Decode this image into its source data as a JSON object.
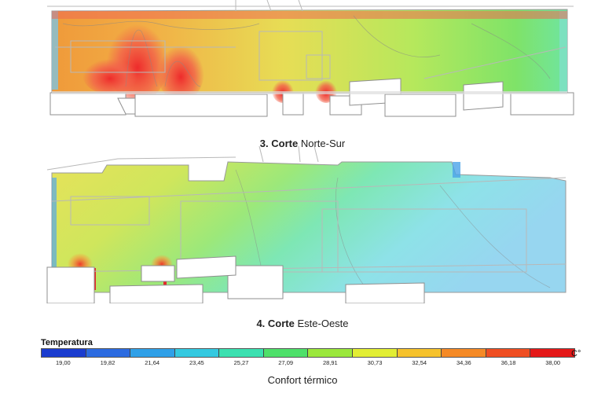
{
  "sections": [
    {
      "number": "3.",
      "label_bold": "Corte",
      "label_rest": "Norte-Sur"
    },
    {
      "number": "4.",
      "label_bold": "Corte",
      "label_rest": "Este-Oeste"
    }
  ],
  "legend": {
    "title": "Temperatura",
    "unit": "C°",
    "values": [
      "19,00",
      "19,82",
      "21,64",
      "23,45",
      "25,27",
      "27,09",
      "28,91",
      "30,73",
      "32,54",
      "34,36",
      "36,18",
      "38,00"
    ],
    "colors": [
      "#1a3ccf",
      "#2c6be0",
      "#2fa0e8",
      "#34c9e0",
      "#3be0b0",
      "#4ee06a",
      "#9be83c",
      "#e2ee34",
      "#f6c22c",
      "#f58a26",
      "#ef4e22",
      "#e41818"
    ]
  },
  "footer": "Confort térmico"
}
